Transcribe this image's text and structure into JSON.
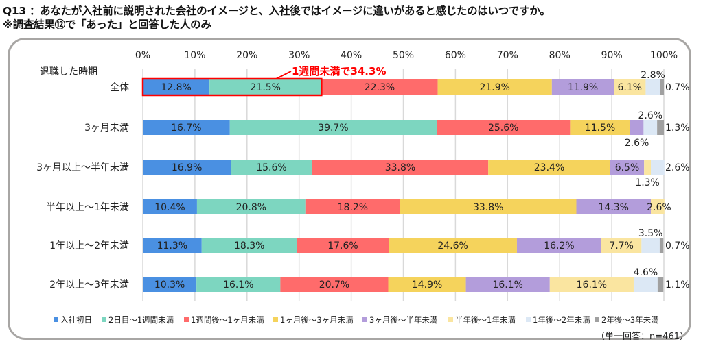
{
  "title": {
    "line1": "Q13 ：あなたが入社前に説明された会社のイメージと、入社後ではイメージに違いがあると感じたのはいつですか。",
    "line2": "※調査結果⑫で「あった」と回答した人のみ"
  },
  "chart_data": {
    "type": "bar",
    "orientation": "horizontal",
    "stacked": true,
    "xlim": [
      0,
      100
    ],
    "x_ticks": [
      "0%",
      "10%",
      "20%",
      "30%",
      "40%",
      "50%",
      "60%",
      "70%",
      "80%",
      "90%",
      "100%"
    ],
    "row_axis_label": "退職した時期",
    "categories": [
      "全体",
      "3ヶ月未満",
      "3ヶ月以上～半年未満",
      "半年以上～1年未満",
      "1年以上～2年未満",
      "2年以上～3年未満"
    ],
    "grid": true,
    "legend_position": "bottom",
    "series": [
      {
        "name": "入社初日",
        "color": "#4a90e2",
        "values": [
          12.8,
          16.7,
          16.9,
          10.4,
          11.3,
          10.3
        ]
      },
      {
        "name": "2日目～1週間未満",
        "color": "#7dd6c0",
        "values": [
          21.5,
          39.7,
          15.6,
          20.8,
          18.3,
          16.1
        ]
      },
      {
        "name": "1週間後～1ヶ月未満",
        "color": "#ff6b6b",
        "values": [
          22.3,
          25.6,
          33.8,
          18.2,
          17.6,
          20.7
        ]
      },
      {
        "name": "1ヶ月後～3ヶ月未満",
        "color": "#f5d35c",
        "values": [
          21.9,
          11.5,
          23.4,
          33.8,
          24.6,
          14.9
        ]
      },
      {
        "name": "3ヶ月後～半年未満",
        "color": "#b39ddb",
        "values": [
          11.9,
          2.6,
          6.5,
          14.3,
          16.2,
          16.1
        ]
      },
      {
        "name": "半年後～1年未満",
        "color": "#fae5a0",
        "values": [
          6.1,
          0,
          1.3,
          2.6,
          7.7,
          16.1
        ]
      },
      {
        "name": "1年後～2年未満",
        "color": "#dce8f5",
        "values": [
          2.8,
          2.6,
          2.6,
          0,
          3.5,
          4.6
        ]
      },
      {
        "name": "2年後～3年未満",
        "color": "#a0a0a0",
        "values": [
          0.7,
          1.3,
          0,
          0,
          0.7,
          1.1
        ]
      }
    ],
    "annotation": {
      "text": "1週間未満で34.3%",
      "color": "#ff0000",
      "highlight_row": "全体",
      "highlight_series": [
        "入社初日",
        "2日目～1週間未満"
      ]
    },
    "note": "（単一回答：n=461）"
  }
}
